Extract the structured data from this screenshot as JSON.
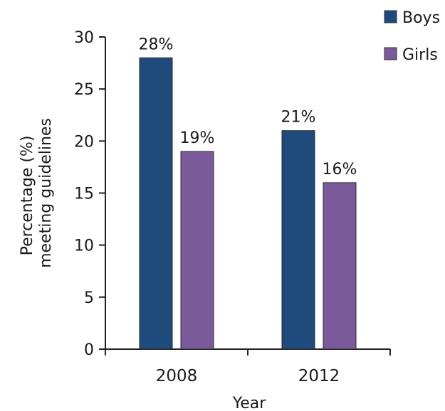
{
  "chart_data": {
    "type": "bar",
    "categories": [
      "2008",
      "2012"
    ],
    "series": [
      {
        "name": "Boys",
        "values": [
          28,
          21
        ],
        "labels": [
          "28%",
          "21%"
        ],
        "color": "#1f4a7c"
      },
      {
        "name": "Girls",
        "values": [
          19,
          16
        ],
        "labels": [
          "19%",
          "16%"
        ],
        "color": "#7b5a9b"
      }
    ],
    "xlabel": "Year",
    "ylabel_lines": [
      "Percentage (%)",
      "meeting guidelines"
    ],
    "ylim": [
      0,
      30
    ],
    "yticks": [
      0,
      5,
      10,
      15,
      20,
      25,
      30
    ],
    "grid": false,
    "legend_position": "top-right"
  }
}
